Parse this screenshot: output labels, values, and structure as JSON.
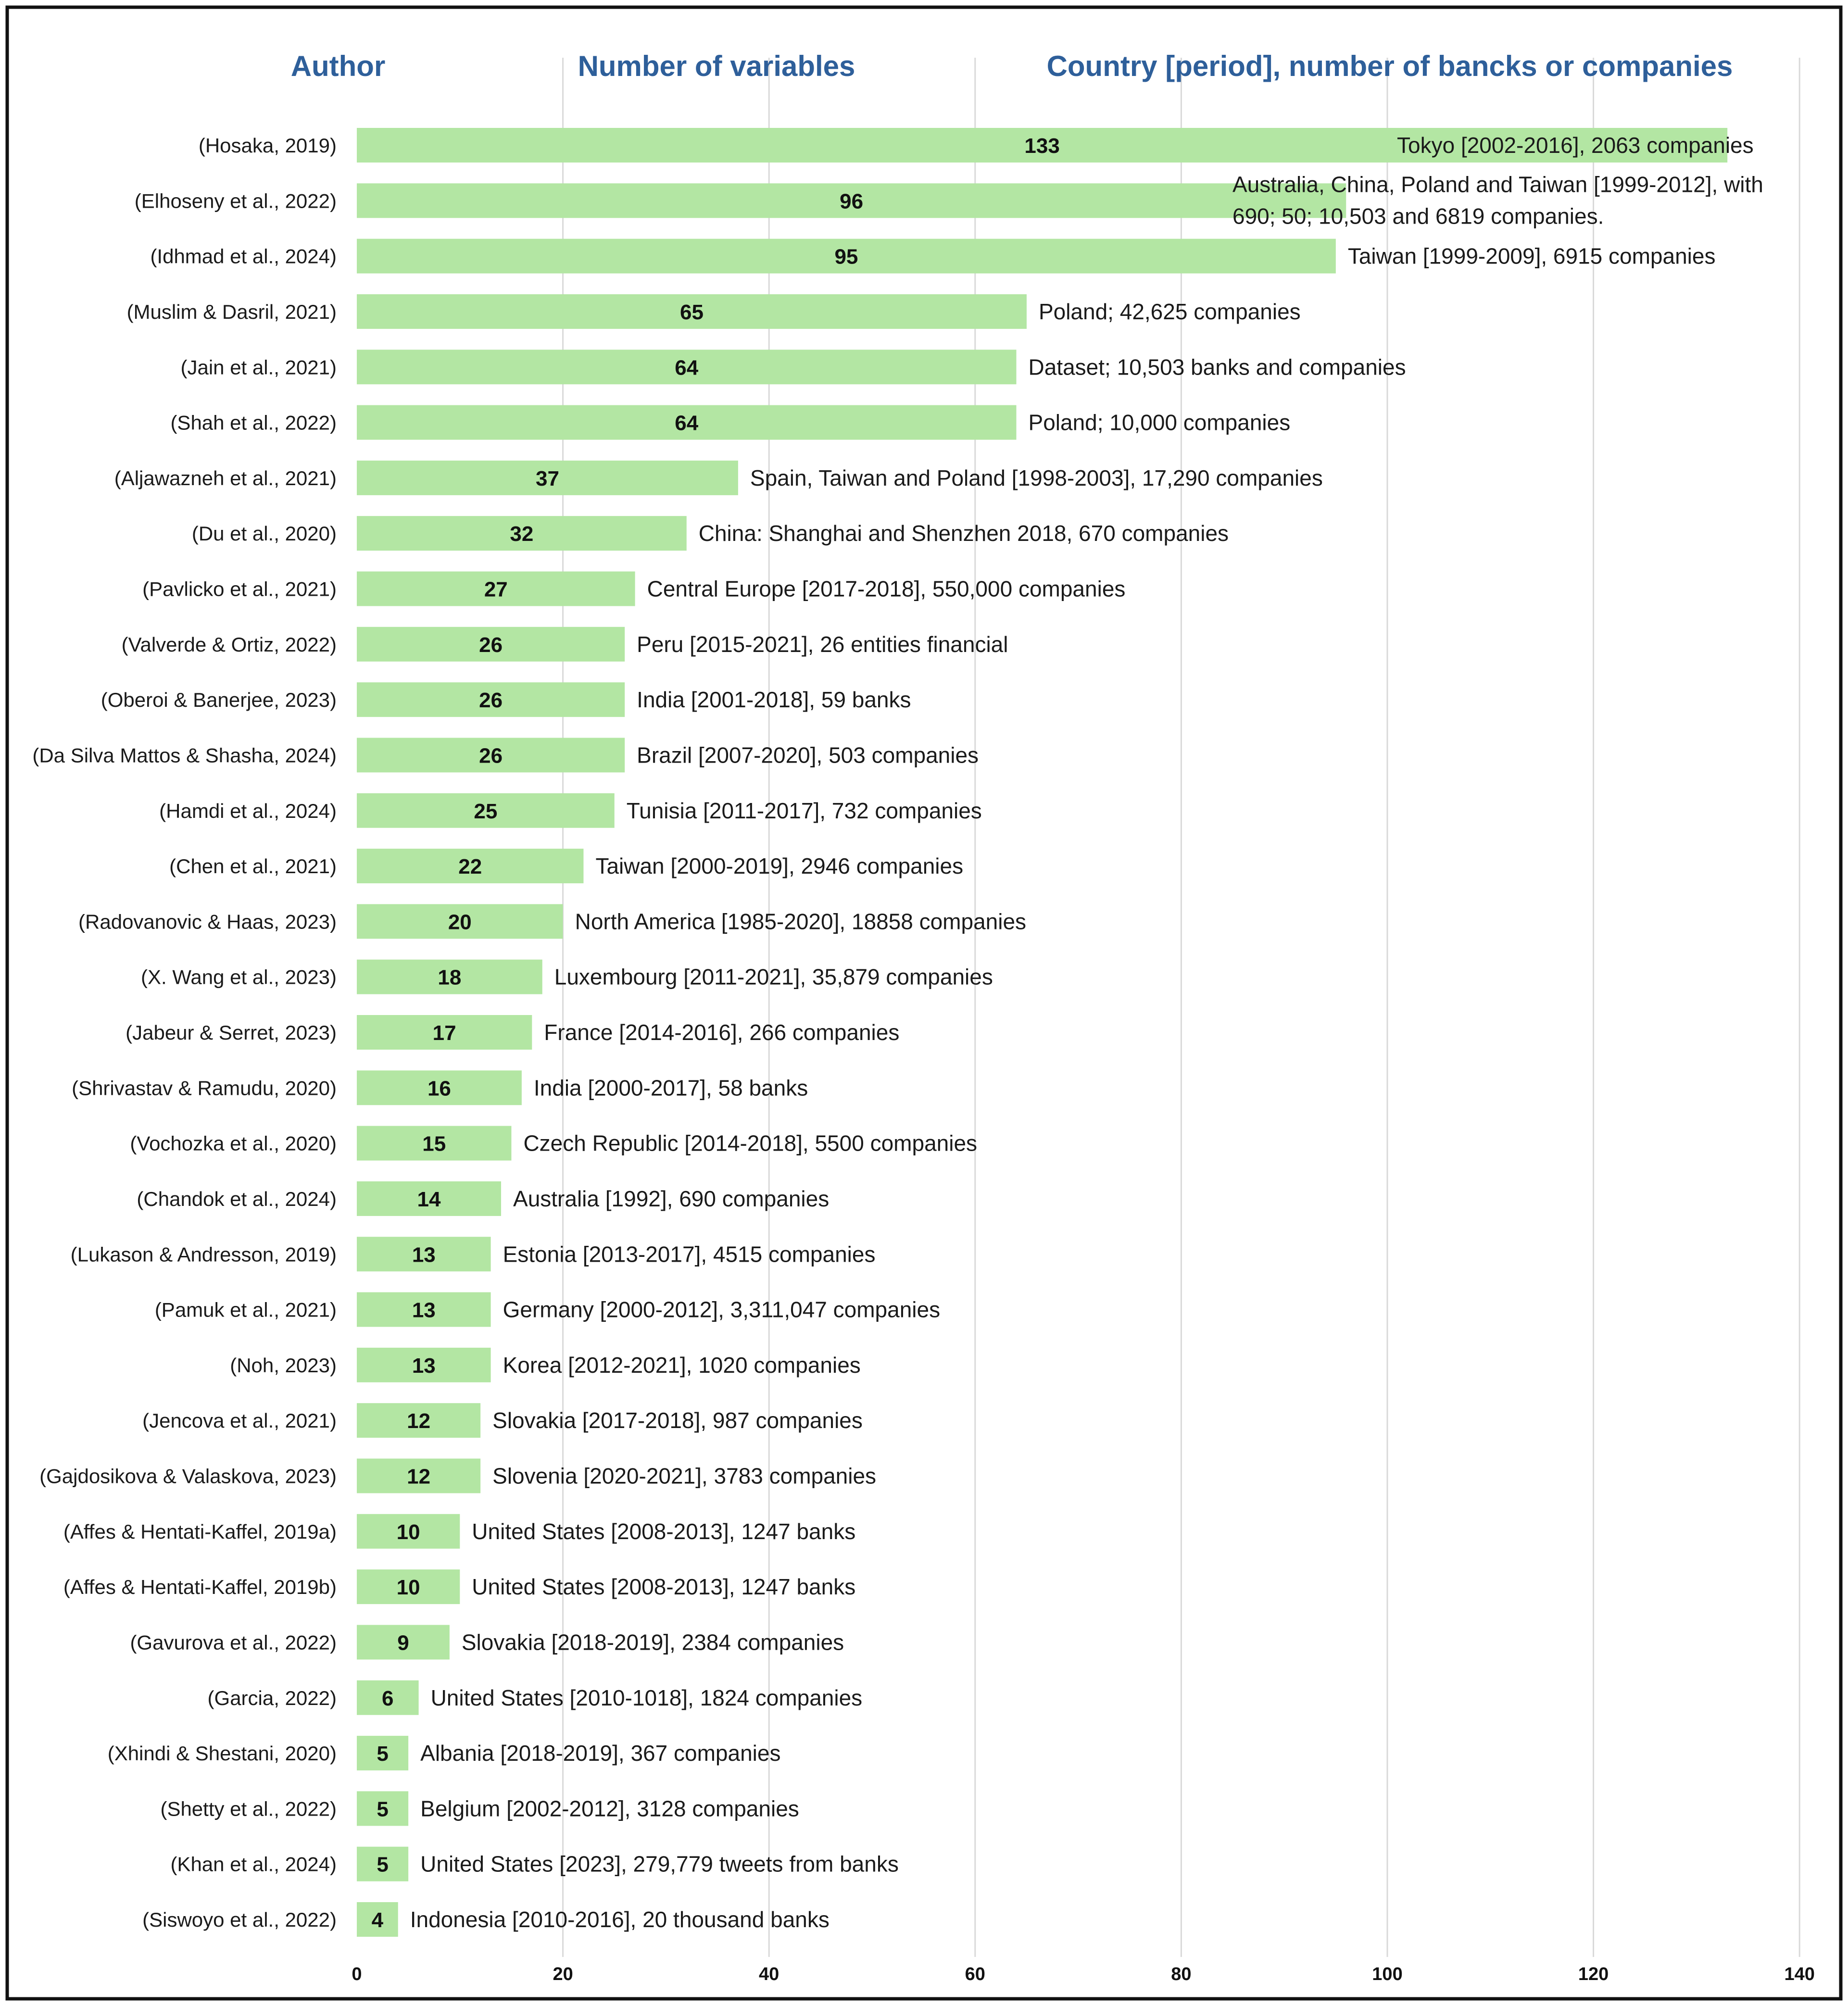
{
  "chart_data": {
    "type": "bar",
    "orientation": "horizontal",
    "headers": {
      "author": "Author",
      "variables": "Number of variables",
      "country": "Country [period], number of bancks or companies"
    },
    "xlim": [
      0,
      140
    ],
    "xticks": [
      0,
      20,
      40,
      60,
      80,
      100,
      120,
      140
    ],
    "grid": true,
    "colors": {
      "bar": "#b3e6a3",
      "header": "#2e5f9a"
    },
    "categories": [
      "(Hosaka, 2019)",
      "(Elhoseny et al., 2022)",
      "(Idhmad et al., 2024)",
      "(Muslim & Dasril, 2021)",
      "(Jain et al., 2021)",
      "(Shah et al., 2022)",
      "(Aljawazneh et al., 2021)",
      "(Du et al., 2020)",
      "(Pavlicko et al., 2021)",
      "(Valverde & Ortiz, 2022)",
      "(Oberoi & Banerjee, 2023)",
      "(Da Silva Mattos & Shasha, 2024)",
      "(Hamdi et al., 2024)",
      "(Chen et al., 2021)",
      "(Radovanovic & Haas, 2023)",
      "(X. Wang et al., 2023)",
      "(Jabeur & Serret, 2023)",
      "(Shrivastav & Ramudu, 2020)",
      "(Vochozka et al., 2020)",
      "(Chandok et al., 2024)",
      "(Lukason & Andresson, 2019)",
      "(Pamuk et al., 2021)",
      "(Noh, 2023)",
      "(Jencova et al., 2021)",
      "(Gajdosikova & Valaskova, 2023)",
      "(Affes & Hentati-Kaffel, 2019a)",
      "(Affes & Hentati-Kaffel, 2019b)",
      "(Gavurova et al., 2022)",
      "(Garcia, 2022)",
      "(Xhindi & Shestani, 2020)",
      "(Shetty et al., 2022)",
      "(Khan et al., 2024)",
      "(Siswoyo et al., 2022)"
    ],
    "values": [
      133,
      96,
      95,
      65,
      64,
      64,
      37,
      32,
      27,
      26,
      26,
      26,
      25,
      22,
      20,
      18,
      17,
      16,
      15,
      14,
      13,
      13,
      13,
      12,
      12,
      10,
      10,
      9,
      6,
      5,
      5,
      5,
      4
    ],
    "descriptions": [
      [
        "Tokyo [2002-2016], 2063 companies"
      ],
      [
        "Australia, China, Poland and Taiwan [1999-2012], with",
        "690; 50; 10,503 and 6819 companies."
      ],
      [
        "Taiwan [1999-2009], 6915 companies"
      ],
      [
        "Poland; 42,625 companies"
      ],
      [
        "Dataset; 10,503 banks and companies"
      ],
      [
        "Poland; 10,000 companies"
      ],
      [
        "Spain, Taiwan and Poland [1998-2003], 17,290 companies"
      ],
      [
        "China: Shanghai and Shenzhen 2018, 670 companies"
      ],
      [
        "Central Europe [2017-2018], 550,000 companies"
      ],
      [
        "Peru [2015-2021], 26 entities financial"
      ],
      [
        "India [2001-2018], 59 banks"
      ],
      [
        "Brazil [2007-2020], 503 companies"
      ],
      [
        "Tunisia [2011-2017], 732 companies"
      ],
      [
        "Taiwan [2000-2019], 2946 companies"
      ],
      [
        "North America [1985-2020], 18858 companies"
      ],
      [
        "Luxembourg [2011-2021], 35,879 companies"
      ],
      [
        "France [2014-2016], 266 companies"
      ],
      [
        "India [2000-2017], 58 banks"
      ],
      [
        "Czech Republic [2014-2018], 5500 companies"
      ],
      [
        "Australia [1992], 690 companies"
      ],
      [
        "Estonia [2013-2017], 4515 companies"
      ],
      [
        "Germany [2000-2012], 3,311,047 companies"
      ],
      [
        "Korea [2012-2021], 1020 companies"
      ],
      [
        "Slovakia [2017-2018], 987 companies"
      ],
      [
        "Slovenia [2020-2021], 3783 companies"
      ],
      [
        "United States [2008-2013], 1247 banks"
      ],
      [
        "United States [2008-2013], 1247 banks"
      ],
      [
        "Slovakia [2018-2019], 2384 companies"
      ],
      [
        "United States [2010-1018], 1824 companies"
      ],
      [
        "Albania [2018-2019], 367 companies"
      ],
      [
        "Belgium [2002-2012], 3128 companies"
      ],
      [
        "United States [2023], 279,779 tweets from banks"
      ],
      [
        "Indonesia [2010-2016], 20 thousand banks"
      ]
    ]
  }
}
